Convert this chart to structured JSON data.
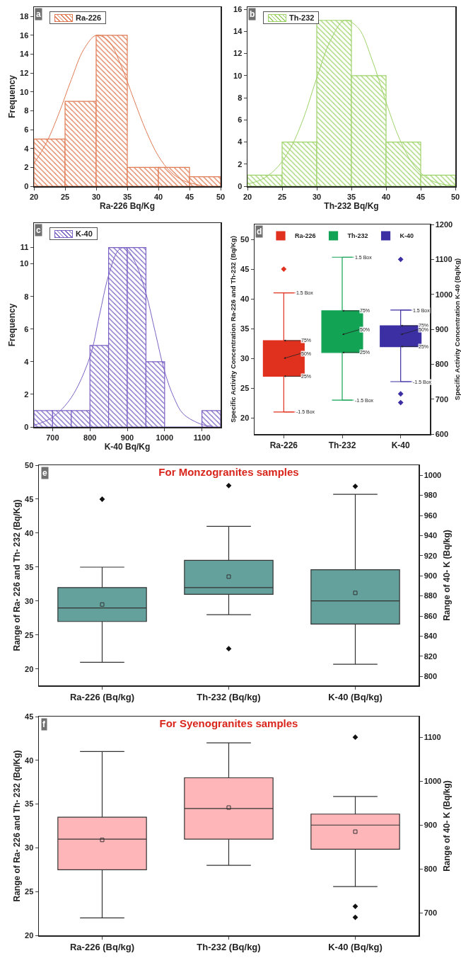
{
  "chart_data": [
    {
      "type": "histogram",
      "annotations": [
        "a"
      ],
      "xlabel": "Ra-226 Bq/Kg",
      "ylabel": "Frequency",
      "bins": [
        20,
        25,
        30,
        35,
        40,
        45,
        50
      ],
      "xlim": [
        20,
        50
      ],
      "xticks": [
        20,
        25,
        30,
        35,
        40,
        45,
        50
      ],
      "ylim": [
        0,
        19
      ],
      "yticks": [
        0,
        2,
        4,
        6,
        8,
        10,
        12,
        14,
        16,
        18
      ],
      "legend": "top left",
      "series": [
        {
          "name": "Ra-226",
          "color": "#e07b54",
          "values": [
            5,
            9,
            16,
            2,
            2,
            1
          ]
        },
        {
          "type": "line",
          "color": "#e07b54",
          "x": [
            20,
            22,
            24,
            26,
            28,
            30,
            32,
            34,
            36,
            38,
            40,
            42,
            44,
            46,
            47.5
          ],
          "values": [
            2.4,
            4.6,
            7.7,
            11.3,
            14.5,
            16,
            15.4,
            12.8,
            9.3,
            5.9,
            3.2,
            1.5,
            0.6,
            0.2,
            0
          ]
        }
      ]
    },
    {
      "type": "histogram",
      "annotations": [
        "b"
      ],
      "xlabel": "Th-232 Bq/Kg",
      "bins": [
        20,
        25,
        30,
        35,
        40,
        45,
        50
      ],
      "xlim": [
        20,
        50
      ],
      "xticks": [
        20,
        25,
        30,
        35,
        40,
        45,
        50
      ],
      "ylim": [
        0,
        16.2
      ],
      "yticks": [
        0,
        2,
        4,
        6,
        8,
        10,
        12,
        14,
        16
      ],
      "legend": "top left",
      "series": [
        {
          "name": "Th-232",
          "color": "#9ed36a",
          "values": [
            1,
            4,
            15,
            10,
            4,
            1
          ]
        },
        {
          "type": "line",
          "color": "#9ed36a",
          "x": [
            20,
            22,
            24,
            26,
            28,
            30,
            32,
            34,
            36,
            38,
            40,
            42,
            44,
            46,
            48,
            50
          ],
          "values": [
            0.2,
            0.6,
            1.5,
            3.2,
            6,
            9.8,
            13.2,
            15,
            14.3,
            11.4,
            7.6,
            4.2,
            1.9,
            0.7,
            0.2,
            0.05
          ]
        }
      ]
    },
    {
      "type": "histogram",
      "annotations": [
        "c"
      ],
      "xlabel": "K-40 Bq/Kg",
      "ylabel": "Frequency",
      "bins": [
        650,
        700,
        750,
        800,
        850,
        900,
        950,
        1000,
        1050,
        1100,
        1150
      ],
      "xlim": [
        650,
        1150
      ],
      "xticks": [
        700,
        800,
        900,
        1000,
        1100
      ],
      "ylim": [
        0,
        12.5
      ],
      "yticks": [
        0,
        2,
        4,
        6,
        8,
        10,
        11
      ],
      "legend": "top left",
      "series": [
        {
          "name": "K-40",
          "color": "#7b62c4",
          "values": [
            1,
            1,
            1,
            5,
            11,
            11,
            4,
            0,
            0,
            1
          ]
        },
        {
          "type": "line",
          "color": "#7b62c4",
          "x": [
            650,
            700,
            750,
            800,
            825,
            850,
            875,
            890,
            900,
            925,
            950,
            975,
            1000,
            1025,
            1050,
            1100,
            1130
          ],
          "values": [
            0.1,
            0.6,
            1.8,
            4.3,
            6.8,
            9.3,
            10.8,
            11,
            10.9,
            9.9,
            8.2,
            5.8,
            3.4,
            1.8,
            0.8,
            0.15,
            0.03
          ]
        }
      ]
    },
    {
      "type": "box",
      "annotations": [
        "d",
        {
          "text": "1.5 Box",
          "x": "Ra-226",
          "y": 41
        },
        {
          "text": "-1.5 Box",
          "x": "Ra-226",
          "y": 21
        },
        {
          "text": "75%",
          "x": "Ra-226",
          "y": 33
        },
        {
          "text": "50%",
          "x": "Ra-226",
          "y": 30
        },
        {
          "text": "25%",
          "x": "Ra-226",
          "y": 27
        },
        {
          "text": "1.5 Box",
          "x": "Th-232",
          "y": 47
        },
        {
          "text": "-1.5 Box",
          "x": "Th-232",
          "y": 23
        },
        {
          "text": "75%",
          "x": "Th-232",
          "y": 38
        },
        {
          "text": "50%",
          "x": "Th-232",
          "y": 34
        },
        {
          "text": "25%",
          "x": "Th-232",
          "y": 31
        },
        {
          "text": "1.5 Box",
          "x": "K-40",
          "y": 38.1
        },
        {
          "text": "-1.5 Box",
          "x": "K-40",
          "y": 26.1
        },
        {
          "text": "75%",
          "x": "K-40",
          "y": 35.5
        },
        {
          "text": "50%",
          "x": "K-40",
          "y": 34
        },
        {
          "text": "25%",
          "x": "K-40",
          "y": 32
        }
      ],
      "categories": [
        "Ra-226",
        "Th-232",
        "K-40"
      ],
      "ylabel": "Specific Activity Concentration Ra-226 and Th-232 (Bq/Kg)",
      "y2label": "Specific Activity Concentration K-40 (Bq/Kg)",
      "ylim": [
        17.3,
        52.5
      ],
      "yticks": [
        20,
        25,
        30,
        35,
        40,
        45,
        50
      ],
      "y2lim": [
        600,
        1200
      ],
      "y2ticks": [
        600,
        700,
        800,
        900,
        1000,
        1100,
        1200
      ],
      "legend": "top",
      "marker": "diamond",
      "series": [
        {
          "name": "Ra-226",
          "color": "#e0301e",
          "boxes": [
            {
              "low": 21,
              "q1": 27,
              "median": 30,
              "q3": 33,
              "high": 41,
              "outliers": [
                45
              ]
            },
            null,
            null
          ]
        },
        {
          "name": "Th-232",
          "color": "#12a354",
          "boxes": [
            null,
            {
              "low": 23,
              "q1": 31,
              "median": 34,
              "q3": 38,
              "high": 47
            },
            null
          ]
        },
        {
          "name": "K-40",
          "color": "#3b2fa3",
          "axis": "y2",
          "boxes": [
            null,
            null,
            {
              "low": 750,
              "q1": 850,
              "median": 885,
              "q3": 910,
              "high": 955,
              "outliers": [
                1100,
                715,
                690
              ]
            }
          ]
        }
      ]
    },
    {
      "type": "box",
      "title": "For Monzogranites samples",
      "annotations": [
        "e"
      ],
      "categories": [
        "Ra-226 (Bq/kg)",
        "Th-232 (Bq/kg)",
        "K-40 (Bq/kg)"
      ],
      "ylabel": "Range of Ra- 226 and Th- 232 (Bq/Kg)",
      "y2label": "Range of 40- K (Bq/kg)",
      "ylim": [
        17.6,
        50
      ],
      "yticks": [
        20,
        25,
        30,
        35,
        40,
        45,
        50
      ],
      "y2lim": [
        791,
        1010
      ],
      "y2ticks": [
        800,
        820,
        840,
        860,
        880,
        900,
        920,
        940,
        960,
        980,
        1000
      ],
      "marker": "diamond",
      "series": [
        {
          "color": "#64a09c",
          "boxes": [
            {
              "low": 21,
              "q1": 27,
              "median": 29,
              "q3": 32,
              "high": 35,
              "mean": 29.5,
              "outliers": [
                45
              ]
            },
            {
              "low": 28,
              "q1": 31,
              "median": 32,
              "q3": 36,
              "high": 41,
              "mean": 33.6,
              "outliers": [
                47,
                23
              ]
            },
            null
          ]
        },
        {
          "color": "#64a09c",
          "axis": "y2",
          "boxes": [
            null,
            null,
            {
              "low": 812,
              "q1": 852,
              "median": 875,
              "q3": 906,
              "high": 981,
              "mean": 883,
              "outliers": [
                989
              ]
            }
          ]
        }
      ]
    },
    {
      "type": "box",
      "title": "For Syenogranites samples",
      "annotations": [
        "f"
      ],
      "categories": [
        "Ra-226 (Bq/kg)",
        "Th-232 (Bq/kg)",
        "K-40 (Bq/kg)"
      ],
      "ylabel": "Range of Ra- 226 and Th- 232 (Bq/Kg)",
      "y2label": "Range of 40- K (Bq/kg)",
      "ylim": [
        20,
        45
      ],
      "yticks": [
        20,
        25,
        30,
        35,
        40,
        45
      ],
      "y2lim": [
        649,
        1147
      ],
      "y2ticks": [
        700,
        800,
        900,
        1000,
        1100
      ],
      "marker": "diamond",
      "series": [
        {
          "color": "#ffb6b9",
          "boxes": [
            {
              "low": 22,
              "q1": 27.5,
              "median": 31,
              "q3": 33.5,
              "high": 41,
              "mean": 30.9
            },
            {
              "low": 28,
              "q1": 31,
              "median": 34.5,
              "q3": 38,
              "high": 42,
              "mean": 34.6
            },
            null
          ]
        },
        {
          "color": "#ffb6b9",
          "axis": "y2",
          "boxes": [
            null,
            null,
            {
              "low": 760,
              "q1": 845,
              "median": 900,
              "q3": 925,
              "high": 965,
              "mean": 885,
              "outliers": [
                1100,
                715,
                690
              ]
            }
          ]
        }
      ]
    }
  ]
}
